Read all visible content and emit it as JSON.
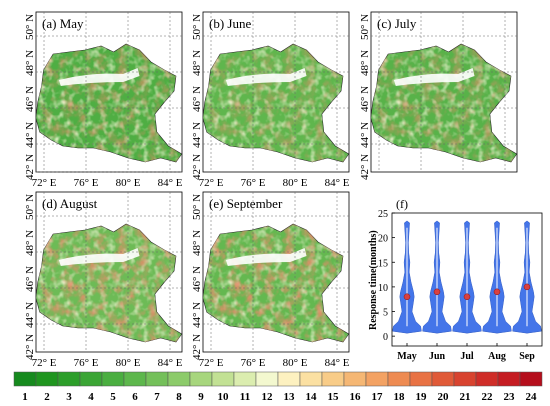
{
  "panels": [
    {
      "letter": "(a)",
      "month": "May"
    },
    {
      "letter": "(b)",
      "month": "June"
    },
    {
      "letter": "(c)",
      "month": "July"
    },
    {
      "letter": "(d)",
      "month": "August"
    },
    {
      "letter": "(e)",
      "month": "September"
    }
  ],
  "lat_labels": [
    "50° N",
    "48° N",
    "46° N",
    "44° N",
    "42° N"
  ],
  "lon_labels": [
    "72° E",
    "76° E",
    "80° E",
    "84° E"
  ],
  "violin": {
    "panel_label": "(f)",
    "ylabel": "Response time(months)",
    "yticks": [
      "0",
      "5",
      "10",
      "15",
      "20",
      "25"
    ],
    "categories": [
      "May",
      "Jun",
      "Jul",
      "Aug",
      "Sep"
    ]
  },
  "chart_data": {
    "type": "violin",
    "ylabel": "Response time(months)",
    "ylim": [
      -2,
      25
    ],
    "categories": [
      "May",
      "Jun",
      "Jul",
      "Aug",
      "Sep"
    ],
    "medians": [
      8,
      9,
      8,
      9,
      10
    ],
    "ranges": [
      [
        1,
        23
      ],
      [
        1,
        23
      ],
      [
        1,
        23
      ],
      [
        1,
        23
      ],
      [
        1,
        23
      ]
    ]
  },
  "colorbar": {
    "labels": [
      "1",
      "2",
      "3",
      "4",
      "5",
      "6",
      "7",
      "8",
      "9",
      "10",
      "11",
      "12",
      "13",
      "14",
      "15",
      "16",
      "17",
      "18",
      "19",
      "20",
      "21",
      "22",
      "23",
      "24"
    ],
    "colors": [
      "#168a1e",
      "#1f951f",
      "#2c9e2a",
      "#3ba535",
      "#4aae40",
      "#5db74c",
      "#74c05a",
      "#8ccb6a",
      "#a7d67d",
      "#c2e194",
      "#dbedaf",
      "#f3f8cf",
      "#fdf1c0",
      "#fbe0a2",
      "#f8cc88",
      "#f5b774",
      "#f3a263",
      "#ee8b52",
      "#e87244",
      "#e05a38",
      "#d8432f",
      "#cf2d28",
      "#c51c22",
      "#b50e1c"
    ]
  }
}
